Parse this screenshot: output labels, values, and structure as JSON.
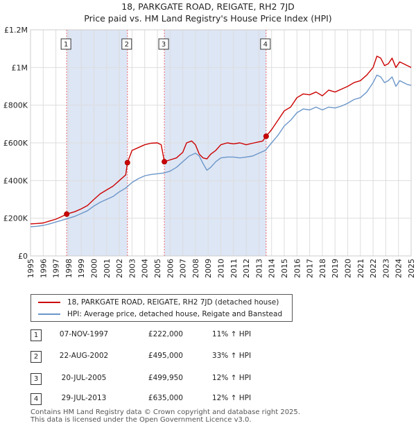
{
  "title_line1": "18, PARKGATE ROAD, REIGATE, RH2 7JD",
  "title_line2": "Price paid vs. HM Land Registry's House Price Index (HPI)",
  "colors": {
    "price": "#cc0000",
    "hpi": "#6b96c9",
    "shade": "#dde6f5",
    "grid": "#dddddd"
  },
  "legend": {
    "price_label": "18, PARKGATE ROAD, REIGATE, RH2 7JD (detached house)",
    "hpi_label": "HPI: Average price, detached house, Reigate and Banstead"
  },
  "transactions": [
    {
      "num": "1",
      "date": "07-NOV-1997",
      "price": "£222,000",
      "hpi": "11% ↑ HPI"
    },
    {
      "num": "2",
      "date": "22-AUG-2002",
      "price": "£495,000",
      "hpi": "33% ↑ HPI"
    },
    {
      "num": "3",
      "date": "20-JUL-2005",
      "price": "£499,950",
      "hpi": "12% ↑ HPI"
    },
    {
      "num": "4",
      "date": "29-JUL-2013",
      "price": "£635,000",
      "hpi": "12% ↑ HPI"
    }
  ],
  "footer": {
    "line1": "Contains HM Land Registry data © Crown copyright and database right 2025.",
    "line2": "This data is licensed under the Open Government Licence v3.0."
  },
  "chart_data": {
    "type": "line",
    "xlim": [
      1995,
      2025
    ],
    "ylim": [
      0,
      1200000
    ],
    "x_ticks": [
      "1995",
      "1996",
      "1997",
      "1998",
      "1999",
      "2000",
      "2001",
      "2002",
      "2003",
      "2004",
      "2005",
      "2006",
      "2007",
      "2008",
      "2009",
      "2010",
      "2011",
      "2012",
      "2013",
      "2014",
      "2015",
      "2016",
      "2017",
      "2018",
      "2019",
      "2020",
      "2021",
      "2022",
      "2023",
      "2024",
      "2025"
    ],
    "y_ticks": [
      {
        "value": 0,
        "label": "£0"
      },
      {
        "value": 200000,
        "label": "£200K"
      },
      {
        "value": 400000,
        "label": "£400K"
      },
      {
        "value": 600000,
        "label": "£600K"
      },
      {
        "value": 800000,
        "label": "£800K"
      },
      {
        "value": 1000000,
        "label": "£1M"
      },
      {
        "value": 1200000,
        "label": "£1.2M"
      }
    ],
    "sales": [
      {
        "num": "1",
        "x": 1997.85,
        "y": 222000
      },
      {
        "num": "2",
        "x": 2002.64,
        "y": 495000
      },
      {
        "num": "3",
        "x": 2005.55,
        "y": 499950
      },
      {
        "num": "4",
        "x": 2013.57,
        "y": 635000
      }
    ],
    "shaded_ranges": [
      [
        1997.85,
        2002.64
      ],
      [
        2005.55,
        2013.57
      ]
    ],
    "series": [
      {
        "name": "18, PARKGATE ROAD, REIGATE, RH2 7JD (detached house)",
        "x": [
          1995,
          1995.5,
          1996,
          1996.5,
          1997,
          1997.5,
          1997.85,
          1998.5,
          1999,
          1999.5,
          2000,
          2000.5,
          2001,
          2001.5,
          2002,
          2002.5,
          2002.64,
          2003,
          2003.5,
          2004,
          2004.5,
          2005,
          2005.3,
          2005.55,
          2006,
          2006.5,
          2007,
          2007.3,
          2007.7,
          2008,
          2008.3,
          2008.6,
          2008.9,
          2009.2,
          2009.6,
          2010,
          2010.5,
          2011,
          2011.5,
          2012,
          2012.5,
          2013,
          2013.3,
          2013.57,
          2014,
          2014.5,
          2015,
          2015.5,
          2016,
          2016.5,
          2017,
          2017.5,
          2018,
          2018.5,
          2019,
          2019.5,
          2020,
          2020.5,
          2021,
          2021.5,
          2022,
          2022.3,
          2022.6,
          2022.9,
          2023.2,
          2023.5,
          2023.8,
          2024.1,
          2024.4,
          2024.7,
          2025
        ],
        "y": [
          170000,
          172000,
          175000,
          185000,
          195000,
          210000,
          222000,
          235000,
          250000,
          268000,
          300000,
          330000,
          350000,
          370000,
          400000,
          430000,
          495000,
          560000,
          575000,
          590000,
          598000,
          600000,
          590000,
          499950,
          510000,
          520000,
          550000,
          600000,
          610000,
          590000,
          540000,
          520000,
          515000,
          540000,
          560000,
          590000,
          600000,
          595000,
          600000,
          590000,
          598000,
          605000,
          610000,
          635000,
          670000,
          720000,
          770000,
          790000,
          840000,
          860000,
          855000,
          870000,
          850000,
          880000,
          870000,
          885000,
          900000,
          920000,
          930000,
          960000,
          1000000,
          1060000,
          1050000,
          1010000,
          1020000,
          1050000,
          1000000,
          1030000,
          1020000,
          1010000,
          1000000
        ]
      },
      {
        "name": "HPI: Average price, detached house, Reigate and Banstead",
        "x": [
          1995,
          1995.5,
          1996,
          1996.5,
          1997,
          1997.5,
          1998,
          1998.5,
          1999,
          1999.5,
          2000,
          2000.5,
          2001,
          2001.5,
          2002,
          2002.5,
          2003,
          2003.5,
          2004,
          2004.5,
          2005,
          2005.5,
          2006,
          2006.5,
          2007,
          2007.5,
          2008,
          2008.3,
          2008.6,
          2008.9,
          2009.2,
          2009.6,
          2010,
          2010.5,
          2011,
          2011.5,
          2012,
          2012.5,
          2013,
          2013.5,
          2014,
          2014.5,
          2015,
          2015.5,
          2016,
          2016.5,
          2017,
          2017.5,
          2018,
          2018.5,
          2019,
          2019.5,
          2020,
          2020.5,
          2021,
          2021.5,
          2022,
          2022.3,
          2022.6,
          2022.9,
          2023.2,
          2023.5,
          2023.8,
          2024.1,
          2024.4,
          2024.7,
          2025
        ],
        "y": [
          155000,
          157000,
          162000,
          170000,
          180000,
          190000,
          200000,
          210000,
          225000,
          240000,
          265000,
          285000,
          300000,
          315000,
          340000,
          360000,
          390000,
          410000,
          425000,
          432000,
          436000,
          440000,
          450000,
          470000,
          500000,
          530000,
          545000,
          530000,
          490000,
          455000,
          470000,
          500000,
          520000,
          525000,
          525000,
          520000,
          525000,
          530000,
          545000,
          560000,
          600000,
          640000,
          690000,
          720000,
          760000,
          780000,
          775000,
          790000,
          775000,
          790000,
          785000,
          795000,
          810000,
          830000,
          840000,
          870000,
          920000,
          960000,
          950000,
          920000,
          930000,
          950000,
          900000,
          930000,
          920000,
          910000,
          905000
        ]
      }
    ]
  }
}
